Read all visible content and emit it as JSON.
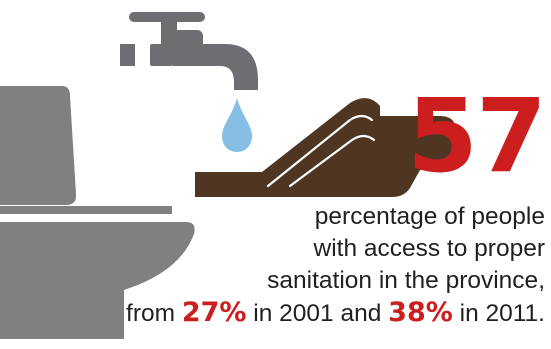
{
  "headline": {
    "value": "57"
  },
  "caption": {
    "line1": "percentage of people",
    "line2": "with access to proper",
    "line3": "sanitation in the province,",
    "line4_prefix": "from ",
    "pct_2001": "27%",
    "mid": " in 2001 and ",
    "pct_2011": "38%",
    "suffix": " in 2011."
  },
  "icons": [
    "faucet-icon",
    "water-drop-icon",
    "hand-icon",
    "toilet-icon"
  ],
  "colors": {
    "accent": "#cc1e1e",
    "text": "#231f20",
    "faucet": "#6d6e71",
    "toilet": "#808080",
    "hand": "#4f3622",
    "drop": "#86bfe3"
  }
}
